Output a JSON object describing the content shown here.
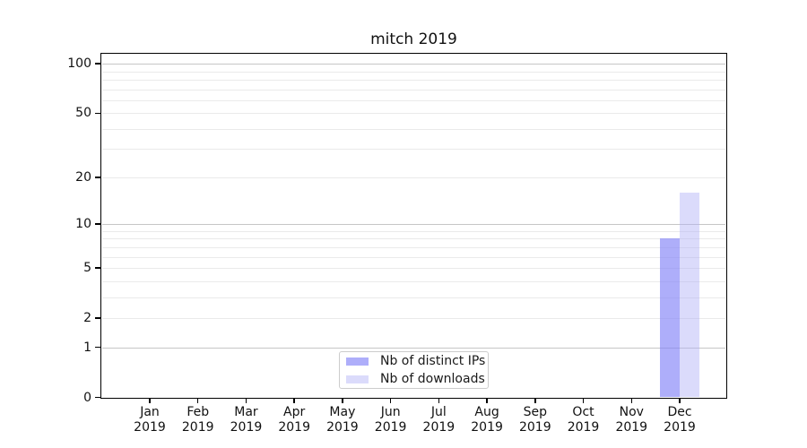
{
  "chart_data": {
    "type": "bar",
    "title": "mitch 2019",
    "categories": [
      "Jan",
      "Feb",
      "Mar",
      "Apr",
      "May",
      "Jun",
      "Jul",
      "Aug",
      "Sep",
      "Oct",
      "Nov",
      "Dec"
    ],
    "x_tick_year": "2019",
    "series": [
      {
        "name": "Nb of distinct IPs",
        "color": "rgba(130,130,247,0.65)",
        "values": [
          0,
          0,
          0,
          0,
          0,
          0,
          0,
          0,
          0,
          0,
          0,
          8
        ]
      },
      {
        "name": "Nb of downloads",
        "color": "rgba(175,175,247,0.45)",
        "values": [
          0,
          0,
          0,
          0,
          0,
          0,
          0,
          0,
          0,
          0,
          0,
          16
        ]
      }
    ],
    "yscale": "log1p",
    "ylim": [
      0,
      115
    ],
    "ytick_values": [
      0,
      1,
      2,
      5,
      10,
      20,
      50,
      100
    ],
    "ytick_labels": [
      "0",
      "1",
      "2",
      "5",
      "10",
      "20",
      "50",
      "100"
    ],
    "major_grid_values": [
      1,
      10,
      100
    ],
    "minor_grid_values": [
      2,
      3,
      4,
      5,
      6,
      7,
      8,
      9,
      20,
      30,
      40,
      50,
      60,
      70,
      80,
      90
    ],
    "grid": "both",
    "legend_position": "lower-center-inside"
  },
  "colors": {
    "major_grid": "#c6c6c6",
    "minor_grid": "#eaeaea",
    "axis": "#000000",
    "text": "#111111"
  }
}
